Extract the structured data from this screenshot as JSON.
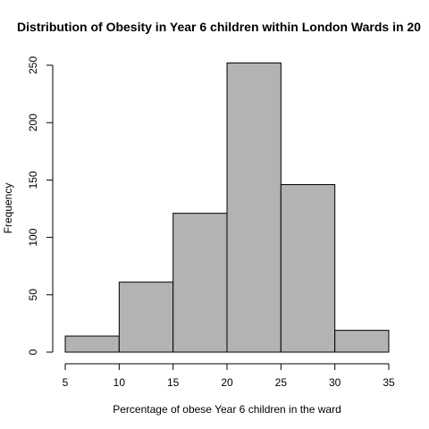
{
  "chart_data": {
    "type": "bar",
    "title": "Distribution of Obesity in Year 6 children within London Wards in 20",
    "xlabel": "Percentage of obese Year 6 children in the ward",
    "ylabel": "Frequency",
    "bins": [
      {
        "from": 5,
        "to": 10,
        "count": 14
      },
      {
        "from": 10,
        "to": 15,
        "count": 61
      },
      {
        "from": 15,
        "to": 20,
        "count": 121
      },
      {
        "from": 20,
        "to": 25,
        "count": 252
      },
      {
        "from": 25,
        "to": 30,
        "count": 146
      },
      {
        "from": 30,
        "to": 35,
        "count": 19
      }
    ],
    "xlim": [
      5,
      35
    ],
    "ylim": [
      0,
      250
    ],
    "xticks": [
      5,
      10,
      15,
      20,
      25,
      30,
      35
    ],
    "yticks": [
      0,
      50,
      100,
      150,
      200,
      250
    ],
    "grid": false,
    "bar_color": "#b3b3b3"
  }
}
